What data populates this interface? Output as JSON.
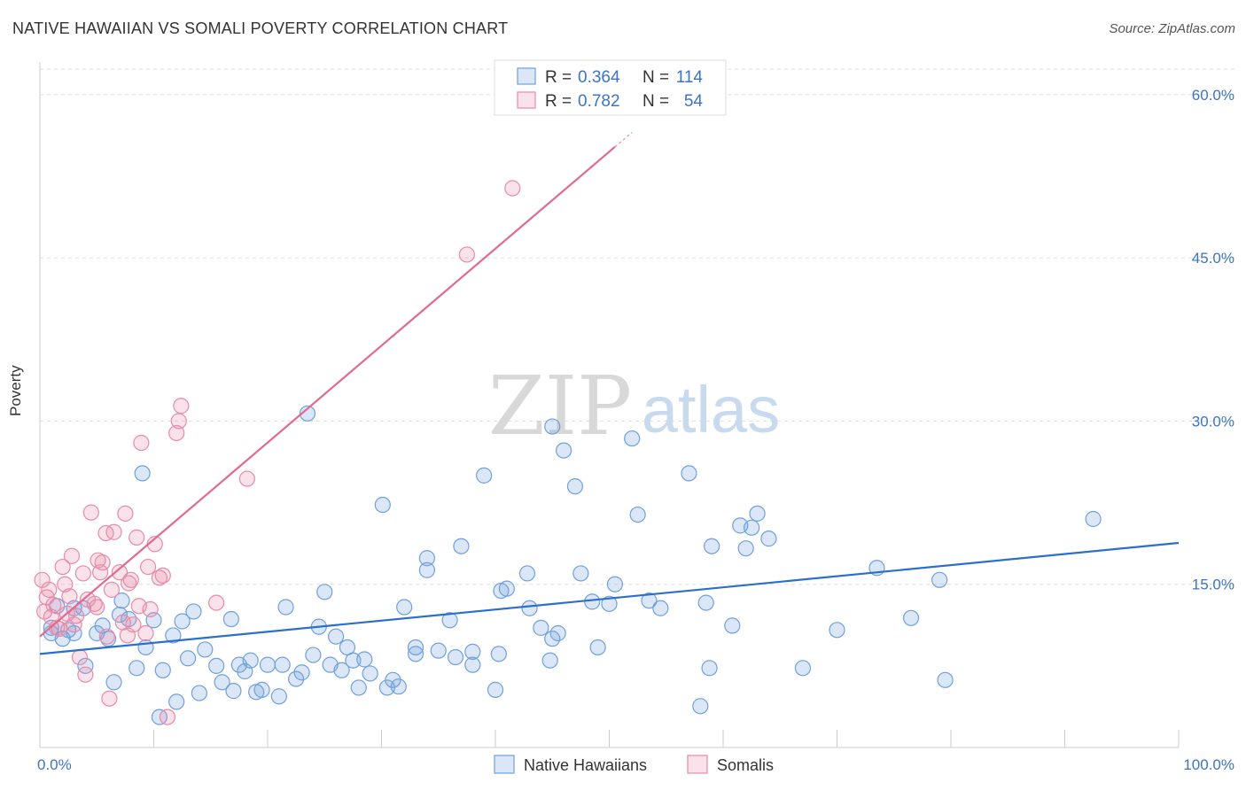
{
  "title": "NATIVE HAWAIIAN VS SOMALI POVERTY CORRELATION CHART",
  "source": "Source: ZipAtlas.com",
  "watermark": {
    "zip": "ZIP",
    "atlas": "atlas"
  },
  "colors": {
    "blue": "#6fa0dc",
    "blue_fill": "rgba(111,160,220,0.25)",
    "blue_line": "#2a6fcc",
    "pink": "#e88aa8",
    "pink_fill": "rgba(232,138,168,0.25)",
    "pink_line": "#e06a90",
    "axis_text": "#3a74c8"
  },
  "legend_top": [
    {
      "r_label": "R =",
      "r": "0.364",
      "n_label": "N =",
      "n": "114",
      "series": "blue"
    },
    {
      "r_label": "R =",
      "r": "0.782",
      "n_label": "N =",
      "n": "54",
      "series": "pink"
    }
  ],
  "legend_bottom": [
    {
      "label": "Native Hawaiians",
      "series": "blue"
    },
    {
      "label": "Somalis",
      "series": "pink"
    }
  ],
  "chart_data": {
    "type": "scatter",
    "title": "NATIVE HAWAIIAN VS SOMALI POVERTY CORRELATION CHART",
    "xlabel": "",
    "ylabel": "Poverty",
    "xlim": [
      0,
      100
    ],
    "ylim": [
      0,
      63
    ],
    "x_tick_labels": [
      "0.0%",
      "100.0%"
    ],
    "y_ticks": [
      15,
      30,
      45,
      60
    ],
    "y_tick_labels": [
      "15.0%",
      "30.0%",
      "45.0%",
      "60.0%"
    ],
    "grid": true,
    "legend_position": "top-center",
    "series": [
      {
        "name": "Native Hawaiians",
        "color": "blue",
        "trend": {
          "x": [
            0,
            100
          ],
          "y": [
            8.6,
            18.8
          ]
        },
        "points": [
          [
            1,
            10.5
          ],
          [
            1,
            11
          ],
          [
            1.5,
            13
          ],
          [
            2,
            10
          ],
          [
            2.5,
            10.8
          ],
          [
            3,
            12.8
          ],
          [
            3,
            10.5
          ],
          [
            3.8,
            12.8
          ],
          [
            4,
            7.5
          ],
          [
            5,
            10.5
          ],
          [
            5.5,
            11.2
          ],
          [
            6,
            10
          ],
          [
            6.5,
            6
          ],
          [
            7,
            12.2
          ],
          [
            7.2,
            13.5
          ],
          [
            7.8,
            11.8
          ],
          [
            8.5,
            7.3
          ],
          [
            9,
            25.2
          ],
          [
            9.3,
            9.2
          ],
          [
            10,
            11.7
          ],
          [
            10.5,
            2.8
          ],
          [
            10.8,
            7.1
          ],
          [
            11.7,
            10.3
          ],
          [
            12,
            4.2
          ],
          [
            12.5,
            11.6
          ],
          [
            13,
            8.2
          ],
          [
            13.5,
            12.5
          ],
          [
            14,
            5
          ],
          [
            14.5,
            9
          ],
          [
            15.5,
            7.5
          ],
          [
            16,
            6
          ],
          [
            16.8,
            11.8
          ],
          [
            17,
            5.2
          ],
          [
            17.5,
            7.6
          ],
          [
            18,
            7
          ],
          [
            18.5,
            8
          ],
          [
            19,
            5.1
          ],
          [
            19.5,
            5.3
          ],
          [
            20,
            7.6
          ],
          [
            21,
            4.7
          ],
          [
            21.3,
            7.6
          ],
          [
            21.6,
            12.9
          ],
          [
            22.5,
            6.3
          ],
          [
            23,
            6.9
          ],
          [
            23.5,
            30.7
          ],
          [
            24,
            8.5
          ],
          [
            24.5,
            11.1
          ],
          [
            25,
            14.3
          ],
          [
            25.5,
            7.6
          ],
          [
            26,
            10.2
          ],
          [
            26.5,
            7.1
          ],
          [
            27,
            9.2
          ],
          [
            27.5,
            8
          ],
          [
            28,
            5.5
          ],
          [
            28.5,
            8.1
          ],
          [
            29,
            6.8
          ],
          [
            30.1,
            22.3
          ],
          [
            30.5,
            5.5
          ],
          [
            31,
            6.2
          ],
          [
            31.5,
            5.6
          ],
          [
            32,
            12.9
          ],
          [
            33,
            9.2
          ],
          [
            33,
            8.6
          ],
          [
            34,
            17.4
          ],
          [
            34,
            16.3
          ],
          [
            35,
            8.9
          ],
          [
            36,
            11.7
          ],
          [
            36.5,
            8.3
          ],
          [
            37,
            18.5
          ],
          [
            38,
            7.6
          ],
          [
            38,
            8.8
          ],
          [
            39,
            25
          ],
          [
            40,
            5.3
          ],
          [
            40.3,
            8.6
          ],
          [
            40.5,
            14.4
          ],
          [
            41,
            14.6
          ],
          [
            42.8,
            16
          ],
          [
            43,
            12.8
          ],
          [
            44,
            11
          ],
          [
            44.8,
            8
          ],
          [
            45,
            10
          ],
          [
            45,
            29.5
          ],
          [
            45.5,
            10.5
          ],
          [
            46,
            27.3
          ],
          [
            47,
            24
          ],
          [
            47.5,
            16
          ],
          [
            48.5,
            13.4
          ],
          [
            49,
            9.2
          ],
          [
            50,
            13.2
          ],
          [
            50.5,
            15
          ],
          [
            52,
            28.4
          ],
          [
            52.5,
            21.4
          ],
          [
            53.5,
            13.5
          ],
          [
            54.5,
            12.8
          ],
          [
            57,
            25.2
          ],
          [
            58,
            3.8
          ],
          [
            58.5,
            13.3
          ],
          [
            58.8,
            7.3
          ],
          [
            59,
            18.5
          ],
          [
            60.8,
            11.2
          ],
          [
            61.5,
            20.4
          ],
          [
            62,
            18.3
          ],
          [
            62.5,
            20.2
          ],
          [
            63,
            21.5
          ],
          [
            64,
            19.2
          ],
          [
            67,
            7.3
          ],
          [
            70,
            10.8
          ],
          [
            73.5,
            16.5
          ],
          [
            76.5,
            11.9
          ],
          [
            79,
            15.4
          ],
          [
            79.5,
            6.2
          ],
          [
            92.5,
            21
          ]
        ]
      },
      {
        "name": "Somalis",
        "color": "pink",
        "trend": {
          "x": [
            0,
            50.5
          ],
          "y": [
            10.2,
            55.2
          ]
        },
        "points": [
          [
            0.2,
            15.4
          ],
          [
            0.4,
            12.5
          ],
          [
            0.6,
            13.8
          ],
          [
            0.8,
            14.5
          ],
          [
            1,
            12
          ],
          [
            1.2,
            13.1
          ],
          [
            1.5,
            11
          ],
          [
            1.7,
            10.9
          ],
          [
            2,
            16.6
          ],
          [
            2.2,
            15
          ],
          [
            2.4,
            12.3
          ],
          [
            2.6,
            13.9
          ],
          [
            2.8,
            17.6
          ],
          [
            3,
            11.3
          ],
          [
            3.2,
            12.1
          ],
          [
            3.5,
            8.3
          ],
          [
            3.8,
            16
          ],
          [
            4,
            6.7
          ],
          [
            4.2,
            13.6
          ],
          [
            4.5,
            21.6
          ],
          [
            4.8,
            13.2
          ],
          [
            5,
            12.9
          ],
          [
            5.1,
            17.2
          ],
          [
            5.3,
            16.1
          ],
          [
            5.5,
            17
          ],
          [
            5.8,
            19.7
          ],
          [
            5.9,
            10.2
          ],
          [
            6.1,
            4.5
          ],
          [
            6.3,
            14.5
          ],
          [
            6.5,
            19.8
          ],
          [
            7,
            16.1
          ],
          [
            7.3,
            11.5
          ],
          [
            7.5,
            21.5
          ],
          [
            7.7,
            10.3
          ],
          [
            7.8,
            15.1
          ],
          [
            8,
            15.4
          ],
          [
            8.2,
            11.3
          ],
          [
            8.5,
            19.3
          ],
          [
            8.7,
            13
          ],
          [
            8.9,
            28
          ],
          [
            9.3,
            10.5
          ],
          [
            9.5,
            16.6
          ],
          [
            9.7,
            12.7
          ],
          [
            10.1,
            18.7
          ],
          [
            10.5,
            15.6
          ],
          [
            10.8,
            15.8
          ],
          [
            11.2,
            2.8
          ],
          [
            12,
            28.9
          ],
          [
            12.2,
            30
          ],
          [
            12.4,
            31.4
          ],
          [
            15.5,
            13.3
          ],
          [
            18.2,
            24.7
          ],
          [
            37.5,
            45.3
          ],
          [
            41.5,
            51.4
          ]
        ]
      }
    ]
  }
}
